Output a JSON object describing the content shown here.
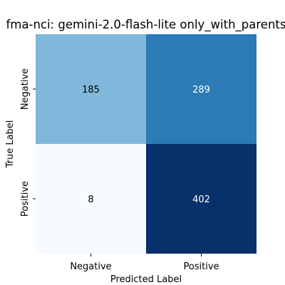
{
  "chart_data": {
    "type": "heatmap",
    "title": "fma-nci: gemini-2.0-flash-lite only_with_parents",
    "xlabel": "Predicted Label",
    "ylabel": "True Label",
    "x_categories": [
      "Negative",
      "Positive"
    ],
    "y_categories": [
      "Negative",
      "Positive"
    ],
    "values": [
      [
        185,
        289
      ],
      [
        8,
        402
      ]
    ],
    "colorscale": "Blues",
    "cell_colors": [
      [
        "#7fb8da",
        "#2c7bb6"
      ],
      [
        "#f7fbff",
        "#08306b"
      ]
    ],
    "text_colors": [
      [
        "#000000",
        "#ffffff"
      ],
      [
        "#000000",
        "#ffffff"
      ]
    ]
  }
}
